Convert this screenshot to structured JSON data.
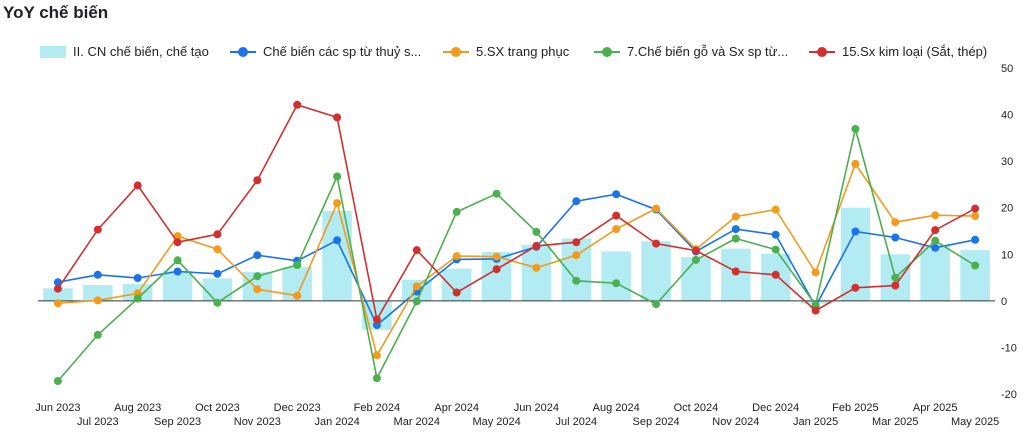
{
  "page": {
    "title": "YoY chế biến"
  },
  "chart_data": {
    "type": "bar+line",
    "categories": [
      "Jun 2023",
      "Jul 2023",
      "Aug 2023",
      "Sep 2023",
      "Oct 2023",
      "Nov 2023",
      "Dec 2023",
      "Jan 2024",
      "Feb 2024",
      "Mar 2024",
      "Apr 2024",
      "May 2024",
      "Jun 2024",
      "Jul 2024",
      "Aug 2024",
      "Sep 2024",
      "Oct 2024",
      "Nov 2024",
      "Dec 2024",
      "Jan 2025",
      "Feb 2025",
      "Mar 2025",
      "Apr 2025",
      "May 2025"
    ],
    "ylim": [
      -20,
      50
    ],
    "yticks": [
      -20,
      -10,
      0,
      10,
      20,
      30,
      40,
      50
    ],
    "y_axis_position": "right",
    "legend_position": "top",
    "grid": false,
    "series": [
      {
        "name": "II. CN chế biến, chế tạo",
        "type": "bar",
        "color": "#b2ebf2",
        "values": [
          2.7,
          3.4,
          3.6,
          6.5,
          4.8,
          6.2,
          7.3,
          19.3,
          -6.2,
          4.5,
          6.9,
          10.5,
          12.0,
          13.4,
          10.6,
          12.8,
          9.4,
          11.2,
          10.1,
          -0.6,
          20.0,
          10.0,
          12.0,
          10.9
        ]
      },
      {
        "name": "Chế biến các sp từ thuỷ s...",
        "type": "line",
        "color": "#1a73e8",
        "values": [
          4.0,
          5.6,
          4.9,
          6.3,
          5.8,
          9.8,
          8.6,
          13.0,
          -5.2,
          2.0,
          8.9,
          9.0,
          11.6,
          21.4,
          22.9,
          19.6,
          10.6,
          15.4,
          14.2,
          -1.2,
          14.9,
          13.6,
          11.4,
          13.1
        ]
      },
      {
        "name": "5.SX trang phục",
        "type": "line",
        "color": "#f29b1d",
        "values": [
          -0.5,
          0.1,
          1.6,
          13.9,
          11.1,
          2.5,
          1.1,
          21.0,
          -11.7,
          3.1,
          9.6,
          9.5,
          7.1,
          9.8,
          15.4,
          19.8,
          11.1,
          18.1,
          19.6,
          6.1,
          29.4,
          16.9,
          18.4,
          18.2
        ]
      },
      {
        "name": "7.Chế biến gỗ và Sx sp từ...",
        "type": "line",
        "color": "#4caf50",
        "values": [
          -17.2,
          -7.3,
          0.5,
          8.7,
          -0.4,
          5.3,
          7.7,
          26.7,
          -16.6,
          -0.1,
          19.1,
          23.0,
          14.8,
          4.3,
          3.8,
          -0.7,
          8.8,
          13.4,
          11.0,
          -0.9,
          36.9,
          5.0,
          12.9,
          7.6
        ]
      },
      {
        "name": "15.Sx kim loại (Sắt, thép)",
        "type": "line",
        "color": "#d32f2f",
        "values": [
          2.6,
          15.3,
          24.8,
          12.6,
          14.3,
          25.9,
          42.1,
          39.4,
          -4.0,
          10.9,
          1.8,
          6.8,
          11.8,
          12.6,
          18.3,
          12.3,
          10.8,
          6.3,
          5.6,
          -2.1,
          2.8,
          3.3,
          15.2,
          19.8
        ]
      }
    ]
  }
}
